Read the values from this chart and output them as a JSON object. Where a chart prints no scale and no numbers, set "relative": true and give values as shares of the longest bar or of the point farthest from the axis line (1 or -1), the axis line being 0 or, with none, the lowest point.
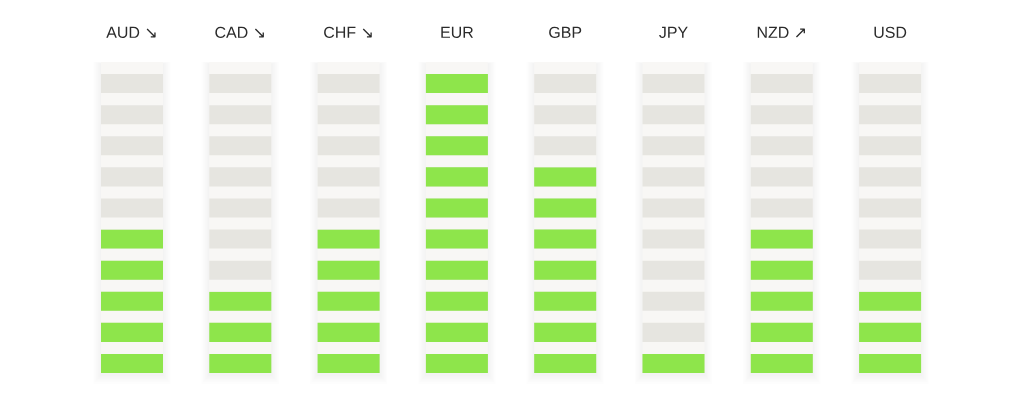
{
  "chart_data": {
    "type": "bar",
    "relative": true,
    "categories": [
      "AUD ↘",
      "CAD ↘",
      "CHF ↘",
      "EUR",
      "GBP",
      "JPY",
      "NZD ↗",
      "USD"
    ],
    "values": [
      0.5,
      0.3,
      0.5,
      1,
      0.7,
      0.1,
      0.5,
      0.3
    ],
    "color": "#8ee54b"
  }
}
